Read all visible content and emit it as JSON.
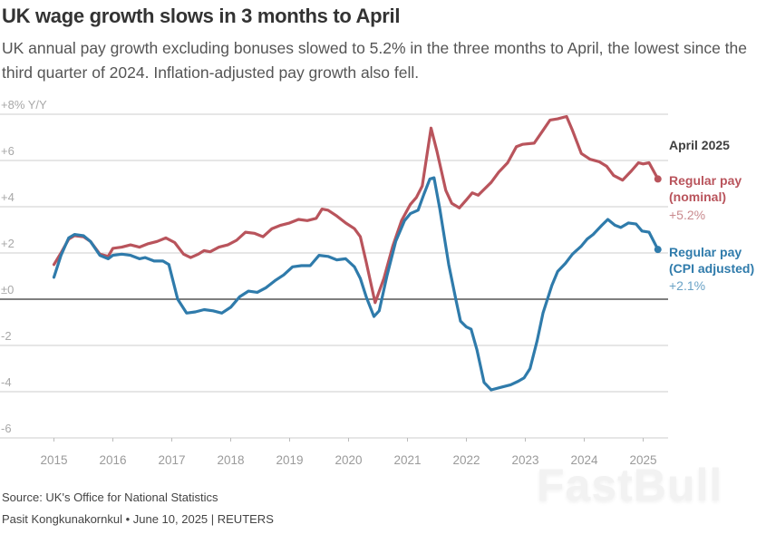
{
  "header": {
    "title": "UK wage growth slows in 3 months to April",
    "subtitle": "UK annual pay growth excluding bonuses slowed to 5.2% in the three months to April, the lowest since the third quarter of 2024. Inflation-adjusted pay growth also fell."
  },
  "labels": {
    "date": "April 2025",
    "nominal_name": "Regular pay (nominal)",
    "nominal_value": "+5.2%",
    "real_name": "Regular pay (CPI adjusted)",
    "real_value": "+2.1%"
  },
  "footer": {
    "source": "Source: UK's Office for National Statistics",
    "credit": "Pasit Kongkunakornkul • June 10, 2025 | REUTERS"
  },
  "watermark": "FastBull",
  "colors": {
    "nominal": "#b9545c",
    "real": "#2f7bab",
    "grid": "#cccccc",
    "zero": "#333333"
  },
  "chart_data": {
    "type": "line",
    "title": "UK wage growth slows in 3 months to April",
    "ylabel": "% Y/Y",
    "xlabel": "",
    "ylim": [
      -6,
      8
    ],
    "xlim": [
      2014.8,
      2025.4
    ],
    "grid": true,
    "legend": "right, inline labels at line ends",
    "y_ticks": [
      {
        "value": 8,
        "label": "+8% Y/Y"
      },
      {
        "value": 6,
        "label": "+6"
      },
      {
        "value": 4,
        "label": "+4"
      },
      {
        "value": 2,
        "label": "+2"
      },
      {
        "value": 0,
        "label": "±0"
      },
      {
        "value": -2,
        "label": "-2"
      },
      {
        "value": -4,
        "label": "-4"
      },
      {
        "value": -6,
        "label": "-6"
      }
    ],
    "x_ticks": [
      2015,
      2016,
      2017,
      2018,
      2019,
      2020,
      2021,
      2022,
      2023,
      2024,
      2025
    ],
    "series": [
      {
        "name": "Regular pay (nominal)",
        "color": "#b9545c",
        "end_value": 5.2,
        "points": [
          [
            2015.0,
            1.5
          ],
          [
            2015.12,
            2.0
          ],
          [
            2015.25,
            2.6
          ],
          [
            2015.35,
            2.75
          ],
          [
            2015.5,
            2.7
          ],
          [
            2015.62,
            2.5
          ],
          [
            2015.78,
            1.95
          ],
          [
            2015.92,
            1.85
          ],
          [
            2016.0,
            2.2
          ],
          [
            2016.15,
            2.25
          ],
          [
            2016.3,
            2.35
          ],
          [
            2016.45,
            2.25
          ],
          [
            2016.6,
            2.4
          ],
          [
            2016.75,
            2.5
          ],
          [
            2016.9,
            2.65
          ],
          [
            2017.05,
            2.45
          ],
          [
            2017.2,
            1.95
          ],
          [
            2017.32,
            1.8
          ],
          [
            2017.45,
            1.95
          ],
          [
            2017.55,
            2.1
          ],
          [
            2017.65,
            2.05
          ],
          [
            2017.8,
            2.25
          ],
          [
            2017.95,
            2.35
          ],
          [
            2018.1,
            2.55
          ],
          [
            2018.25,
            2.9
          ],
          [
            2018.4,
            2.85
          ],
          [
            2018.55,
            2.7
          ],
          [
            2018.7,
            3.05
          ],
          [
            2018.85,
            3.2
          ],
          [
            2019.0,
            3.3
          ],
          [
            2019.15,
            3.45
          ],
          [
            2019.3,
            3.4
          ],
          [
            2019.45,
            3.5
          ],
          [
            2019.55,
            3.9
          ],
          [
            2019.65,
            3.85
          ],
          [
            2019.8,
            3.6
          ],
          [
            2019.95,
            3.3
          ],
          [
            2020.1,
            3.05
          ],
          [
            2020.2,
            2.7
          ],
          [
            2020.3,
            1.6
          ],
          [
            2020.45,
            -0.15
          ],
          [
            2020.6,
            0.9
          ],
          [
            2020.75,
            2.3
          ],
          [
            2020.9,
            3.4
          ],
          [
            2021.05,
            4.1
          ],
          [
            2021.15,
            4.4
          ],
          [
            2021.25,
            4.9
          ],
          [
            2021.4,
            7.4
          ],
          [
            2021.5,
            6.4
          ],
          [
            2021.65,
            4.7
          ],
          [
            2021.75,
            4.15
          ],
          [
            2021.88,
            3.95
          ],
          [
            2022.0,
            4.3
          ],
          [
            2022.1,
            4.6
          ],
          [
            2022.2,
            4.5
          ],
          [
            2022.3,
            4.75
          ],
          [
            2022.42,
            5.05
          ],
          [
            2022.55,
            5.5
          ],
          [
            2022.7,
            5.9
          ],
          [
            2022.85,
            6.6
          ],
          [
            2022.95,
            6.7
          ],
          [
            2023.15,
            6.75
          ],
          [
            2023.3,
            7.3
          ],
          [
            2023.42,
            7.75
          ],
          [
            2023.55,
            7.8
          ],
          [
            2023.7,
            7.9
          ],
          [
            2023.8,
            7.3
          ],
          [
            2023.95,
            6.3
          ],
          [
            2024.1,
            6.05
          ],
          [
            2024.25,
            5.95
          ],
          [
            2024.38,
            5.75
          ],
          [
            2024.5,
            5.35
          ],
          [
            2024.65,
            5.15
          ],
          [
            2024.8,
            5.55
          ],
          [
            2024.92,
            5.9
          ],
          [
            2025.0,
            5.85
          ],
          [
            2025.1,
            5.9
          ],
          [
            2025.25,
            5.2
          ]
        ]
      },
      {
        "name": "Regular pay (CPI adjusted)",
        "color": "#2f7bab",
        "end_value": 2.1,
        "points": [
          [
            2015.0,
            0.95
          ],
          [
            2015.12,
            1.9
          ],
          [
            2015.25,
            2.65
          ],
          [
            2015.35,
            2.8
          ],
          [
            2015.5,
            2.75
          ],
          [
            2015.62,
            2.5
          ],
          [
            2015.78,
            1.9
          ],
          [
            2015.92,
            1.75
          ],
          [
            2016.0,
            1.9
          ],
          [
            2016.15,
            1.95
          ],
          [
            2016.3,
            1.9
          ],
          [
            2016.45,
            1.75
          ],
          [
            2016.55,
            1.8
          ],
          [
            2016.7,
            1.65
          ],
          [
            2016.85,
            1.65
          ],
          [
            2016.95,
            1.5
          ],
          [
            2017.1,
            0.0
          ],
          [
            2017.25,
            -0.6
          ],
          [
            2017.4,
            -0.55
          ],
          [
            2017.55,
            -0.45
          ],
          [
            2017.7,
            -0.5
          ],
          [
            2017.85,
            -0.6
          ],
          [
            2018.0,
            -0.35
          ],
          [
            2018.15,
            0.1
          ],
          [
            2018.3,
            0.35
          ],
          [
            2018.45,
            0.3
          ],
          [
            2018.6,
            0.5
          ],
          [
            2018.75,
            0.8
          ],
          [
            2018.9,
            1.05
          ],
          [
            2019.05,
            1.4
          ],
          [
            2019.2,
            1.45
          ],
          [
            2019.35,
            1.45
          ],
          [
            2019.5,
            1.9
          ],
          [
            2019.65,
            1.85
          ],
          [
            2019.8,
            1.7
          ],
          [
            2019.95,
            1.75
          ],
          [
            2020.1,
            1.4
          ],
          [
            2020.2,
            0.9
          ],
          [
            2020.3,
            0.1
          ],
          [
            2020.43,
            -0.75
          ],
          [
            2020.52,
            -0.5
          ],
          [
            2020.65,
            1.0
          ],
          [
            2020.8,
            2.5
          ],
          [
            2020.95,
            3.4
          ],
          [
            2021.05,
            3.7
          ],
          [
            2021.18,
            3.85
          ],
          [
            2021.28,
            4.55
          ],
          [
            2021.38,
            5.2
          ],
          [
            2021.45,
            5.25
          ],
          [
            2021.55,
            3.9
          ],
          [
            2021.7,
            1.5
          ],
          [
            2021.82,
            0.0
          ],
          [
            2021.9,
            -0.95
          ],
          [
            2022.0,
            -1.2
          ],
          [
            2022.08,
            -1.3
          ],
          [
            2022.18,
            -2.2
          ],
          [
            2022.3,
            -3.6
          ],
          [
            2022.42,
            -3.92
          ],
          [
            2022.6,
            -3.8
          ],
          [
            2022.75,
            -3.7
          ],
          [
            2022.88,
            -3.55
          ],
          [
            2022.98,
            -3.4
          ],
          [
            2023.08,
            -3.0
          ],
          [
            2023.2,
            -1.8
          ],
          [
            2023.3,
            -0.6
          ],
          [
            2023.45,
            0.6
          ],
          [
            2023.55,
            1.2
          ],
          [
            2023.68,
            1.55
          ],
          [
            2023.8,
            1.95
          ],
          [
            2023.95,
            2.3
          ],
          [
            2024.05,
            2.6
          ],
          [
            2024.15,
            2.8
          ],
          [
            2024.3,
            3.2
          ],
          [
            2024.4,
            3.45
          ],
          [
            2024.52,
            3.2
          ],
          [
            2024.62,
            3.1
          ],
          [
            2024.75,
            3.3
          ],
          [
            2024.88,
            3.25
          ],
          [
            2024.98,
            2.95
          ],
          [
            2025.1,
            2.9
          ],
          [
            2025.25,
            2.15
          ]
        ]
      }
    ]
  }
}
